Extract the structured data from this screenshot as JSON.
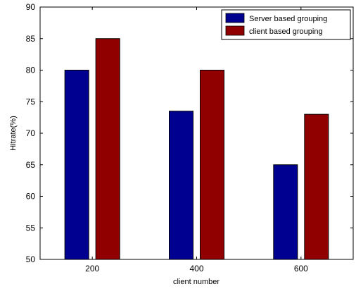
{
  "chart_data": {
    "type": "bar",
    "categories": [
      "200",
      "400",
      "600"
    ],
    "series": [
      {
        "name": "Server based grouping",
        "values": [
          80,
          73.5,
          65
        ],
        "color": "#000090"
      },
      {
        "name": "client based grouping",
        "values": [
          85,
          80,
          73
        ],
        "color": "#900000"
      }
    ],
    "xlabel": "client number",
    "ylabel": "Hitrate(%)",
    "ylim": [
      50,
      90
    ],
    "yticks": [
      50,
      55,
      60,
      65,
      70,
      75,
      80,
      85,
      90
    ],
    "grid": false,
    "legend_position": "top-right"
  }
}
